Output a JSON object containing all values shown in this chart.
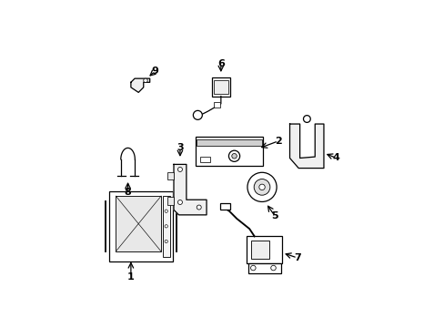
{
  "background_color": "#ffffff",
  "line_color": "#000000",
  "lw": 0.9
}
